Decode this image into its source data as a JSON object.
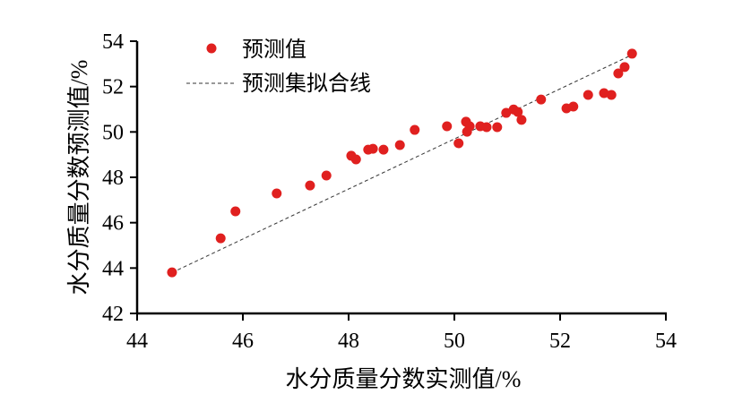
{
  "chart_data": {
    "type": "scatter",
    "title": "",
    "xlabel": "水分质量分数实测值/%",
    "ylabel": "水分质量分数预测值/%",
    "xlim": [
      44,
      54
    ],
    "ylim": [
      42,
      54
    ],
    "xticks": [
      "44",
      "46",
      "48",
      "50",
      "52",
      "54"
    ],
    "yticks": [
      "42",
      "44",
      "46",
      "48",
      "50",
      "52",
      "54"
    ],
    "grid": false,
    "legend_position": "top-left",
    "series": [
      {
        "name": "预测值",
        "kind": "scatter",
        "color": "#e0201f",
        "points": [
          [
            44.66,
            43.81
          ],
          [
            45.58,
            45.31
          ],
          [
            45.86,
            46.5
          ],
          [
            46.64,
            47.29
          ],
          [
            47.27,
            47.64
          ],
          [
            47.58,
            48.08
          ],
          [
            48.05,
            48.95
          ],
          [
            48.14,
            48.79
          ],
          [
            48.37,
            49.22
          ],
          [
            48.46,
            49.26
          ],
          [
            48.66,
            49.22
          ],
          [
            48.97,
            49.42
          ],
          [
            49.25,
            50.09
          ],
          [
            49.86,
            50.25
          ],
          [
            50.08,
            49.5
          ],
          [
            50.22,
            50.45
          ],
          [
            50.29,
            50.25
          ],
          [
            50.24,
            50.01
          ],
          [
            50.49,
            50.25
          ],
          [
            50.61,
            50.21
          ],
          [
            50.81,
            50.21
          ],
          [
            50.98,
            50.84
          ],
          [
            51.12,
            50.99
          ],
          [
            51.2,
            50.88
          ],
          [
            51.27,
            50.53
          ],
          [
            51.64,
            51.43
          ],
          [
            52.12,
            51.04
          ],
          [
            52.25,
            51.12
          ],
          [
            52.53,
            51.63
          ],
          [
            52.83,
            51.71
          ],
          [
            52.97,
            51.63
          ],
          [
            53.1,
            52.58
          ],
          [
            53.22,
            52.86
          ],
          [
            53.36,
            53.45
          ]
        ]
      },
      {
        "name": "预测集拟合线",
        "kind": "line",
        "color": "#333333",
        "dash": true,
        "points": [
          [
            44.66,
            43.8
          ],
          [
            53.36,
            53.4
          ]
        ]
      }
    ]
  }
}
